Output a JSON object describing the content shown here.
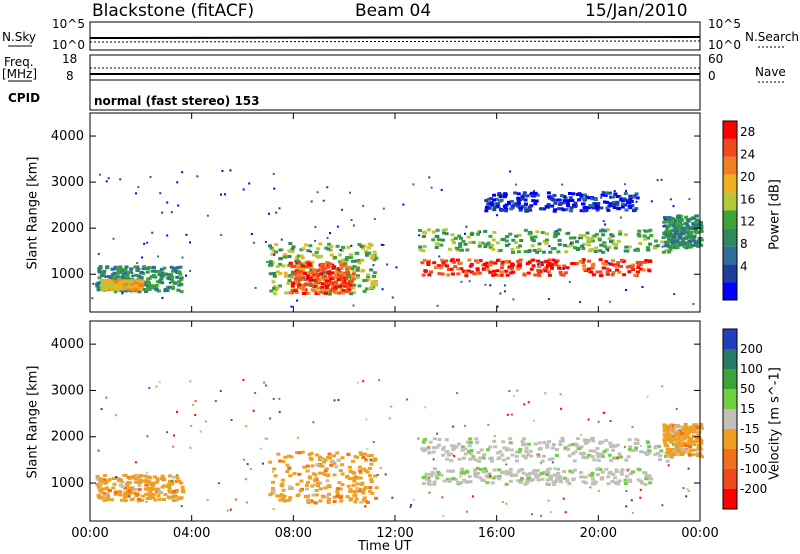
{
  "header": {
    "station": "Blackstone (fitACF)",
    "beam": "Beam 04",
    "date": "15/Jan/2010"
  },
  "noise_panel": {
    "left_label": "N.Sky",
    "right_label": "N.Search",
    "left_ticks": [
      "10^5",
      "10^0"
    ],
    "right_ticks": [
      "10^5",
      "10^0"
    ]
  },
  "freq_panel": {
    "left_label": "Freq.",
    "left_unit": "[MHz]",
    "right_label": "Nave",
    "left_ticks": [
      "18",
      "8"
    ],
    "right_ticks": [
      "60",
      "0"
    ]
  },
  "cpid": {
    "label": "CPID",
    "mode_text": "normal (fast stereo) 153"
  },
  "chart_data": [
    {
      "type": "heatmap",
      "name": "power",
      "ylabel": "Slant Range [km]",
      "xlabel": "Time UT",
      "x_ticks": [
        "00:00",
        "04:00",
        "08:00",
        "12:00",
        "16:00",
        "20:00",
        "00:00"
      ],
      "y_ticks": [
        "1000",
        "2000",
        "3000",
        "4000"
      ],
      "ylim": [
        180,
        4500
      ],
      "colorbar": {
        "label": "Power [dB]",
        "ticks": [
          "4",
          "8",
          "12",
          "16",
          "20",
          "24",
          "28"
        ],
        "colors": [
          "#0000ff",
          "#1f3d9e",
          "#2c6e96",
          "#2f8a5b",
          "#3aa33a",
          "#b5c838",
          "#f0b020",
          "#f08020",
          "#f04a20",
          "#ff0000"
        ]
      },
      "regions": [
        {
          "t0": 0.2,
          "t1": 3.6,
          "r0": 650,
          "r1": 1200,
          "level": 0.35
        },
        {
          "t0": 0.4,
          "t1": 2.0,
          "r0": 700,
          "r1": 900,
          "level": 0.65
        },
        {
          "t0": 7.0,
          "t1": 11.2,
          "r0": 600,
          "r1": 1700,
          "level": 0.5
        },
        {
          "t0": 7.8,
          "t1": 10.3,
          "r0": 600,
          "r1": 1300,
          "level": 0.85
        },
        {
          "t0": 12.9,
          "t1": 23.0,
          "r0": 1500,
          "r1": 2000,
          "level": 0.45
        },
        {
          "t0": 13.0,
          "t1": 22.0,
          "r0": 1000,
          "r1": 1350,
          "level": 0.9
        },
        {
          "t0": 22.5,
          "t1": 24.0,
          "r0": 1600,
          "r1": 2300,
          "level": 0.35
        },
        {
          "t0": 15.5,
          "t1": 21.5,
          "r0": 2400,
          "r1": 2800,
          "level": 0.1
        }
      ]
    },
    {
      "type": "heatmap",
      "name": "velocity",
      "ylabel": "Slant Range [km]",
      "xlabel": "Time UT",
      "x_ticks": [
        "00:00",
        "04:00",
        "08:00",
        "12:00",
        "16:00",
        "20:00",
        "00:00"
      ],
      "y_ticks": [
        "1000",
        "2000",
        "3000",
        "4000"
      ],
      "ylim": [
        180,
        4500
      ],
      "colorbar": {
        "label": "Velocity [m s^-1]",
        "ticks": [
          "200",
          "100",
          "50",
          "15",
          "-15",
          "-50",
          "-100",
          "-200"
        ],
        "colors": [
          "#2040c0",
          "#2a7a6a",
          "#3aa33a",
          "#70d040",
          "#c0c0b8",
          "#f0a020",
          "#f07020",
          "#f04a20",
          "#ff0000"
        ]
      },
      "regions": [
        {
          "t0": 0.2,
          "t1": 3.6,
          "r0": 650,
          "r1": 1200,
          "level": "neg_low"
        },
        {
          "t0": 7.0,
          "t1": 11.2,
          "r0": 600,
          "r1": 1700,
          "level": "neg_low"
        },
        {
          "t0": 12.9,
          "t1": 23.0,
          "r0": 1500,
          "r1": 2000,
          "level": "ground"
        },
        {
          "t0": 13.0,
          "t1": 22.0,
          "r0": 1000,
          "r1": 1350,
          "level": "ground"
        },
        {
          "t0": 22.5,
          "t1": 24.0,
          "r0": 1600,
          "r1": 2300,
          "level": "neg_low"
        }
      ]
    }
  ]
}
